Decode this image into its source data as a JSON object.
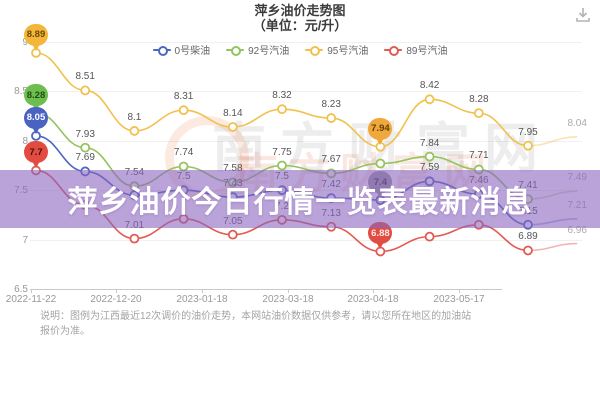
{
  "title": {
    "line1": "萍乡油价走势图",
    "line2": "（单位：元/升）"
  },
  "legend": [
    {
      "label": "0号柴油",
      "color": "#4d68c0"
    },
    {
      "label": "92号汽油",
      "color": "#95c35f"
    },
    {
      "label": "95号汽油",
      "color": "#f1c14f"
    },
    {
      "label": "89号汽油",
      "color": "#e25b52"
    }
  ],
  "banner": {
    "text": "萍乡油价今日行情一览表最新消息",
    "bg_color": "#8a66be"
  },
  "watermark": {
    "text": "南方财富网"
  },
  "note": {
    "text": "说明：图例为江西最近12次调价的油价走势，本网站油价数据仅供参考，请以您所在地区的加油站报价为准。"
  },
  "icons": {
    "download": "download-icon"
  },
  "chart_data": {
    "type": "line",
    "title": "萍乡油价走势图（单位：元/升）",
    "x_labels": [
      "2022-11-22",
      "2022-12-20",
      "2023-01-18",
      "2023-03-18",
      "2023-04-18",
      "2023-05-17"
    ],
    "x_label_point_indices": [
      0,
      2,
      4,
      6,
      8,
      10
    ],
    "n_points": 12,
    "ylim": [
      6.5,
      9.0
    ],
    "y_ticks": [
      "9",
      "8.5",
      "8",
      "7.5",
      "7",
      "6.5"
    ],
    "grid": true,
    "legend_position": "top",
    "last_point_faded": true,
    "series": [
      {
        "name": "95号汽油",
        "color": "#f1c14f",
        "values": [
          8.89,
          8.51,
          8.1,
          8.31,
          8.14,
          8.32,
          8.23,
          7.94,
          8.42,
          8.28,
          7.95,
          8.04
        ],
        "labels": [
          "8.89",
          "8.51",
          "8.1",
          "8.31",
          "8.14",
          "8.32",
          "8.23",
          "7.94",
          "8.42",
          "8.28",
          "7.95",
          "8.04"
        ],
        "balloons": [
          {
            "i": 0,
            "bg": "#f3b53a",
            "fg": "#6a4a00"
          },
          {
            "i": 7,
            "bg": "#f0a73c",
            "fg": "#5d4200"
          }
        ]
      },
      {
        "name": "92号汽油",
        "color": "#95c35f",
        "values": [
          8.28,
          7.93,
          7.54,
          7.74,
          7.58,
          7.75,
          7.67,
          7.77,
          7.84,
          7.71,
          7.41,
          7.49
        ],
        "labels": [
          "8.28",
          "7.93",
          "7.54",
          "7.74",
          "7.58",
          "7.75",
          "7.67",
          "",
          "7.84",
          "7.71",
          "7.41",
          "7.49"
        ],
        "balloons": [
          {
            "i": 0,
            "bg": "#6cbf4e",
            "fg": "#234d12"
          }
        ]
      },
      {
        "name": "0号柴油",
        "color": "#4d68c0",
        "values": [
          8.05,
          7.69,
          7.45,
          7.5,
          7.43,
          7.5,
          7.42,
          7.4,
          7.59,
          7.46,
          7.15,
          7.21
        ],
        "labels": [
          "8.05",
          "7.69",
          "",
          "7.5",
          "7.43",
          "7.5",
          "7.42",
          "7.4",
          "7.59",
          "7.46",
          "7.15",
          "7.21"
        ],
        "balloons": [
          {
            "i": 0,
            "bg": "#4a62c2",
            "fg": "#ffffff"
          },
          {
            "i": 7,
            "bg": "#98989e",
            "fg": "#2e2e2e"
          }
        ]
      },
      {
        "name": "89号汽油",
        "color": "#e25b52",
        "values": [
          7.7,
          7.35,
          7.01,
          7.21,
          7.05,
          7.2,
          7.13,
          6.88,
          7.03,
          7.15,
          6.89,
          6.96
        ],
        "labels": [
          "7.7",
          "",
          "7.01",
          "",
          "7.05",
          "7.2",
          "7.13",
          "6.88",
          "",
          "",
          "6.89",
          "6.96"
        ],
        "balloons": [
          {
            "i": 0,
            "bg": "#e34b41",
            "fg": "#43100a"
          },
          {
            "i": 7,
            "bg": "#df4d45",
            "fg": "#ffe9e7"
          }
        ]
      }
    ]
  }
}
